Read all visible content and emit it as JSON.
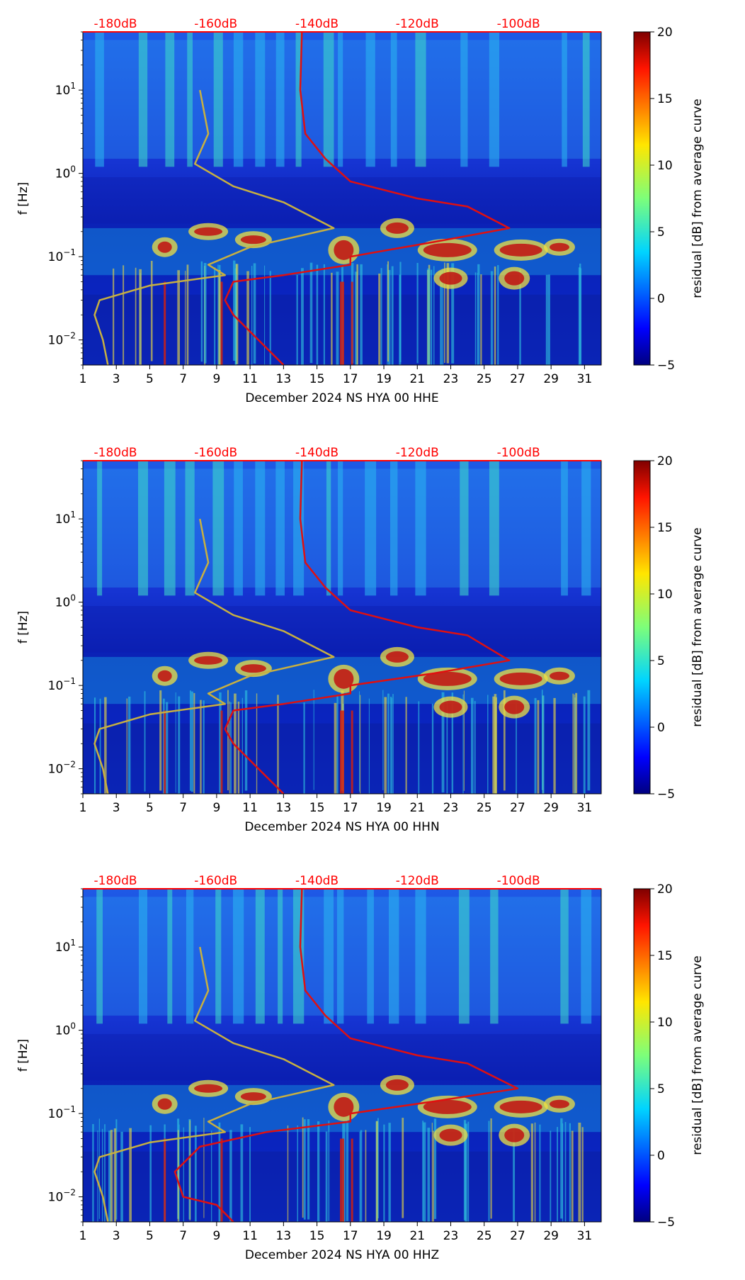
{
  "chart_data": [
    {
      "type": "heatmap",
      "panel": "HHE",
      "xlabel": "December 2024 NS HYA 00 HHE",
      "ylabel": "f [Hz]",
      "x_ticks": [
        1,
        3,
        5,
        7,
        9,
        11,
        13,
        15,
        17,
        19,
        21,
        23,
        25,
        27,
        29,
        31
      ],
      "xlim": [
        1,
        32
      ],
      "ylim": [
        0.005,
        50
      ],
      "y_scale": "log",
      "y_ticks": [
        {
          "value": 0.01,
          "base": "10",
          "exp": "−2"
        },
        {
          "value": 0.1,
          "base": "10",
          "exp": "−1"
        },
        {
          "value": 1,
          "base": "10",
          "exp": "0"
        },
        {
          "value": 10,
          "base": "10",
          "exp": "1"
        }
      ],
      "top_axis_labels": [
        "-180dB",
        "-160dB",
        "-140dB",
        "-120dB",
        "-100dB"
      ],
      "colorbar": {
        "label": "residual [dB] from average curve",
        "ticks": [
          "20",
          "15",
          "10",
          "5",
          "0",
          "−5"
        ],
        "range": [
          -5,
          20
        ]
      },
      "overlays": [
        {
          "name": "average PSD curve",
          "color": "#e01010",
          "points": [
            [
              14.1,
              50
            ],
            [
              14.0,
              10
            ],
            [
              14.3,
              3
            ],
            [
              15.5,
              1.5
            ],
            [
              17,
              0.8
            ],
            [
              21,
              0.5
            ],
            [
              24,
              0.4
            ],
            [
              26.5,
              0.22
            ],
            [
              22,
              0.15
            ],
            [
              17,
              0.1
            ],
            [
              17,
              0.08
            ],
            [
              13,
              0.06
            ],
            [
              10,
              0.05
            ],
            [
              9.5,
              0.03
            ],
            [
              10,
              0.02
            ],
            [
              11.5,
              0.01
            ],
            [
              13,
              0.005
            ]
          ]
        },
        {
          "name": "NLNM/NHNM model curves",
          "color": "#c8b040",
          "points": [
            [
              8,
              10
            ],
            [
              8.5,
              3
            ],
            [
              7.7,
              1.3
            ],
            [
              10,
              0.7
            ],
            [
              13,
              0.45
            ],
            [
              16,
              0.22
            ],
            [
              11,
              0.13
            ],
            [
              8.5,
              0.08
            ],
            [
              9.5,
              0.06
            ],
            [
              5,
              0.045
            ],
            [
              2,
              0.03
            ],
            [
              1.7,
              0.02
            ],
            [
              2.2,
              0.01
            ],
            [
              2.5,
              0.005
            ]
          ]
        }
      ]
    },
    {
      "type": "heatmap",
      "panel": "HHN",
      "xlabel": "December 2024 NS HYA 00 HHN",
      "ylabel": "f [Hz]",
      "x_ticks": [
        1,
        3,
        5,
        7,
        9,
        11,
        13,
        15,
        17,
        19,
        21,
        23,
        25,
        27,
        29,
        31
      ],
      "xlim": [
        1,
        32
      ],
      "ylim": [
        0.005,
        50
      ],
      "y_scale": "log",
      "y_ticks": [
        {
          "value": 0.01,
          "base": "10",
          "exp": "−2"
        },
        {
          "value": 0.1,
          "base": "10",
          "exp": "−1"
        },
        {
          "value": 1,
          "base": "10",
          "exp": "0"
        },
        {
          "value": 10,
          "base": "10",
          "exp": "1"
        }
      ],
      "top_axis_labels": [
        "-180dB",
        "-160dB",
        "-140dB",
        "-120dB",
        "-100dB"
      ],
      "colorbar": {
        "label": "residual [dB] from average curve",
        "ticks": [
          "20",
          "15",
          "10",
          "5",
          "0",
          "−5"
        ],
        "range": [
          -5,
          20
        ]
      },
      "overlays": [
        {
          "name": "average PSD curve",
          "color": "#e01010",
          "points": [
            [
              14.1,
              50
            ],
            [
              14.0,
              10
            ],
            [
              14.3,
              3
            ],
            [
              15.5,
              1.5
            ],
            [
              17,
              0.8
            ],
            [
              21,
              0.5
            ],
            [
              24,
              0.4
            ],
            [
              26.5,
              0.2
            ],
            [
              22,
              0.14
            ],
            [
              17,
              0.1
            ],
            [
              17,
              0.08
            ],
            [
              13,
              0.06
            ],
            [
              10,
              0.05
            ],
            [
              9.5,
              0.03
            ],
            [
              10,
              0.02
            ],
            [
              11.5,
              0.01
            ],
            [
              13,
              0.005
            ]
          ]
        },
        {
          "name": "NLNM/NHNM model curves",
          "color": "#c8b040",
          "points": [
            [
              8,
              10
            ],
            [
              8.5,
              3
            ],
            [
              7.7,
              1.3
            ],
            [
              10,
              0.7
            ],
            [
              13,
              0.45
            ],
            [
              16,
              0.22
            ],
            [
              11,
              0.13
            ],
            [
              8.5,
              0.08
            ],
            [
              9.5,
              0.06
            ],
            [
              5,
              0.045
            ],
            [
              2,
              0.03
            ],
            [
              1.7,
              0.02
            ],
            [
              2.2,
              0.01
            ],
            [
              2.5,
              0.005
            ]
          ]
        }
      ]
    },
    {
      "type": "heatmap",
      "panel": "HHZ",
      "xlabel": "December 2024 NS HYA 00 HHZ",
      "ylabel": "f [Hz]",
      "x_ticks": [
        1,
        3,
        5,
        7,
        9,
        11,
        13,
        15,
        17,
        19,
        21,
        23,
        25,
        27,
        29,
        31
      ],
      "xlim": [
        1,
        32
      ],
      "ylim": [
        0.005,
        50
      ],
      "y_scale": "log",
      "y_ticks": [
        {
          "value": 0.01,
          "base": "10",
          "exp": "−2"
        },
        {
          "value": 0.1,
          "base": "10",
          "exp": "−1"
        },
        {
          "value": 1,
          "base": "10",
          "exp": "0"
        },
        {
          "value": 10,
          "base": "10",
          "exp": "1"
        }
      ],
      "top_axis_labels": [
        "-180dB",
        "-160dB",
        "-140dB",
        "-120dB",
        "-100dB"
      ],
      "colorbar": {
        "label": "residual [dB] from average curve",
        "ticks": [
          "20",
          "15",
          "10",
          "5",
          "0",
          "−5"
        ],
        "range": [
          -5,
          20
        ]
      },
      "overlays": [
        {
          "name": "average PSD curve",
          "color": "#e01010",
          "points": [
            [
              14.1,
              50
            ],
            [
              14.0,
              10
            ],
            [
              14.3,
              3
            ],
            [
              15.5,
              1.5
            ],
            [
              17,
              0.8
            ],
            [
              21,
              0.5
            ],
            [
              24,
              0.4
            ],
            [
              27,
              0.2
            ],
            [
              22,
              0.14
            ],
            [
              17,
              0.1
            ],
            [
              17,
              0.08
            ],
            [
              12,
              0.06
            ],
            [
              8,
              0.04
            ],
            [
              6.5,
              0.02
            ],
            [
              7,
              0.01
            ],
            [
              9,
              0.008
            ],
            [
              10,
              0.005
            ]
          ]
        },
        {
          "name": "NLNM/NHNM model curves",
          "color": "#c8b040",
          "points": [
            [
              8,
              10
            ],
            [
              8.5,
              3
            ],
            [
              7.7,
              1.3
            ],
            [
              10,
              0.7
            ],
            [
              13,
              0.45
            ],
            [
              16,
              0.22
            ],
            [
              11,
              0.13
            ],
            [
              8.5,
              0.08
            ],
            [
              9.5,
              0.06
            ],
            [
              5,
              0.045
            ],
            [
              2,
              0.03
            ],
            [
              1.7,
              0.02
            ],
            [
              2.2,
              0.01
            ],
            [
              2.5,
              0.005
            ]
          ]
        }
      ]
    }
  ]
}
